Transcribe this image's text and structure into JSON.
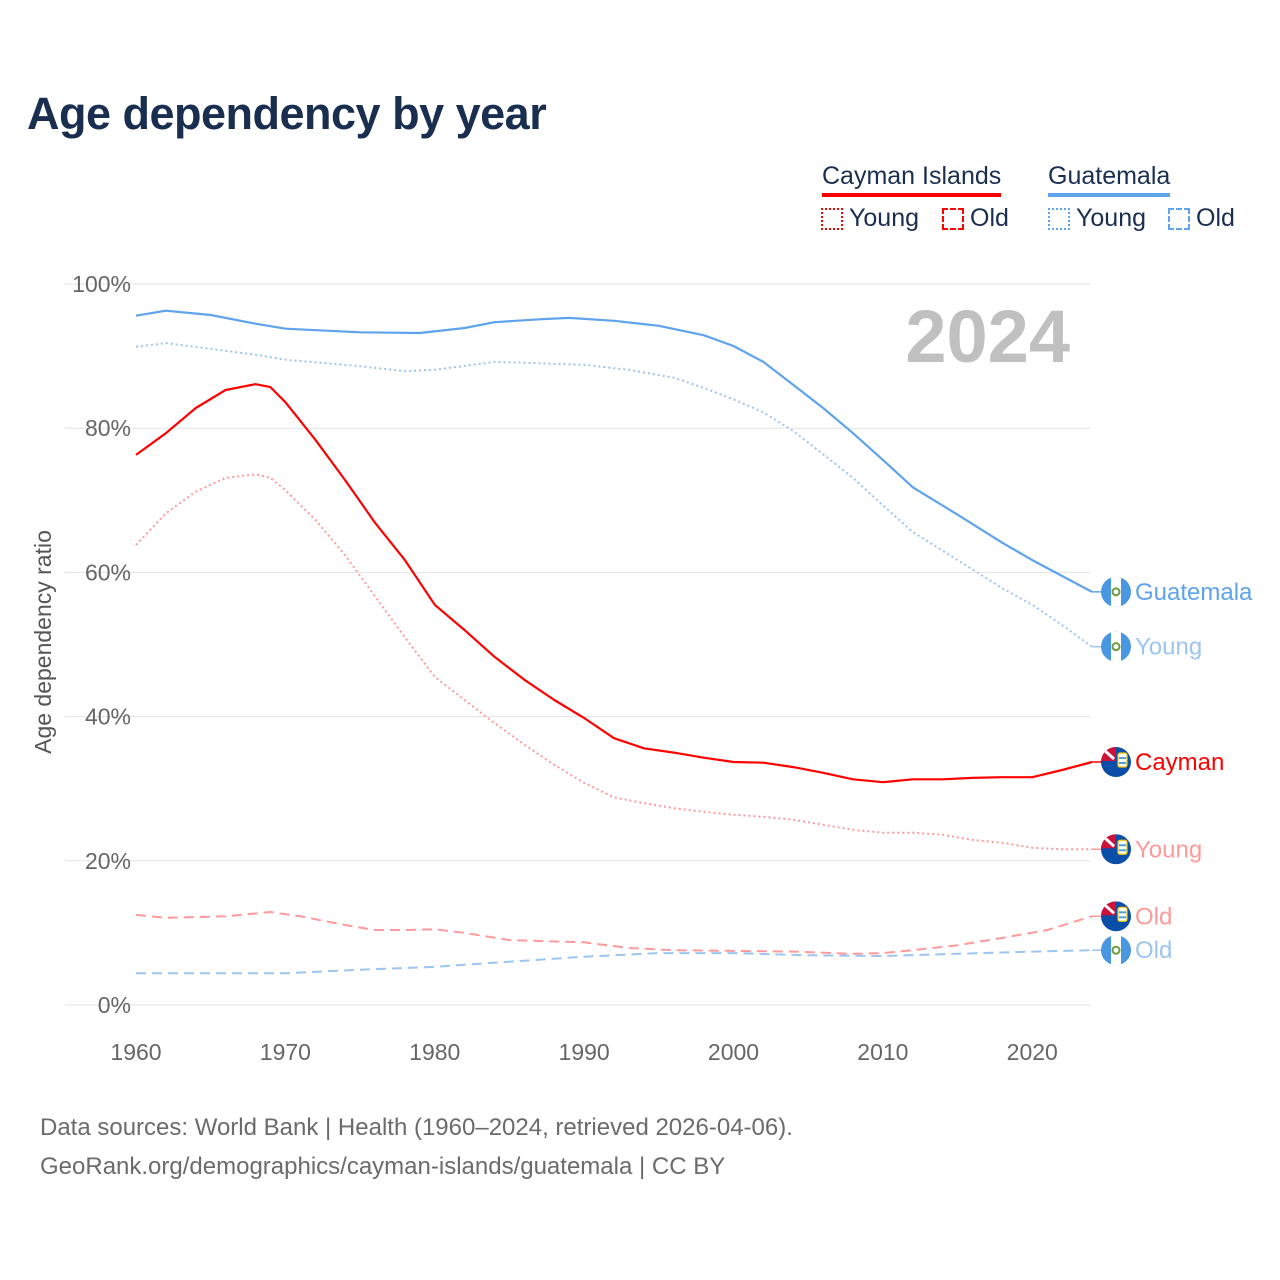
{
  "title": "Age dependency by year",
  "legend": {
    "groups": [
      {
        "name": "Cayman Islands",
        "color": "#ff0000",
        "young": "Young",
        "old": "Old"
      },
      {
        "name": "Guatemala",
        "color": "#5ea3eb",
        "young": "Young",
        "old": "Old"
      }
    ]
  },
  "year_watermark": "2024",
  "footer": {
    "line1": "Data sources: World Bank | Health (1960–2024, retrieved 2026-04-06).",
    "line2": "GeoRank.org/demographics/cayman-islands/guatemala | CC BY"
  },
  "chart_data": {
    "type": "line",
    "title": "Age dependency by year",
    "xlabel": "",
    "ylabel": "Age dependency ratio",
    "xlim": [
      1960,
      2024
    ],
    "ylim": [
      0,
      100
    ],
    "x_ticks": [
      "1960",
      "1970",
      "1980",
      "1990",
      "2000",
      "2010",
      "2020"
    ],
    "y_ticks": [
      "0%",
      "20%",
      "40%",
      "60%",
      "80%",
      "100%"
    ],
    "grid": true,
    "legend_position": "top-right",
    "series": [
      {
        "name": "Guatemala",
        "end_label": "Guatemala",
        "country": "guatemala",
        "color": "#5ea3eb",
        "dash": "solid",
        "points": [
          [
            1960,
            95.6
          ],
          [
            1962,
            96.3
          ],
          [
            1965,
            95.7
          ],
          [
            1968,
            94.5
          ],
          [
            1970,
            93.8
          ],
          [
            1975,
            93.3
          ],
          [
            1979,
            93.2
          ],
          [
            1982,
            93.9
          ],
          [
            1984,
            94.7
          ],
          [
            1987,
            95.1
          ],
          [
            1989,
            95.3
          ],
          [
            1992,
            94.9
          ],
          [
            1995,
            94.2
          ],
          [
            1998,
            92.9
          ],
          [
            2000,
            91.4
          ],
          [
            2002,
            89.2
          ],
          [
            2004,
            86.0
          ],
          [
            2006,
            82.8
          ],
          [
            2008,
            79.3
          ],
          [
            2010,
            75.6
          ],
          [
            2012,
            71.8
          ],
          [
            2015,
            68.0
          ],
          [
            2018,
            64.1
          ],
          [
            2020,
            61.7
          ],
          [
            2022,
            59.5
          ],
          [
            2024,
            57.3
          ]
        ]
      },
      {
        "name": "Guatemala Young",
        "end_label": "Young",
        "country": "guatemala",
        "color": "#9cc5f0",
        "dash": "dotted",
        "points": [
          [
            1960,
            91.3
          ],
          [
            1962,
            91.8
          ],
          [
            1965,
            91.0
          ],
          [
            1968,
            90.2
          ],
          [
            1970,
            89.5
          ],
          [
            1975,
            88.6
          ],
          [
            1978,
            87.9
          ],
          [
            1980,
            88.1
          ],
          [
            1984,
            89.2
          ],
          [
            1987,
            89.0
          ],
          [
            1990,
            88.8
          ],
          [
            1993,
            88.1
          ],
          [
            1996,
            87.0
          ],
          [
            1998,
            85.6
          ],
          [
            2000,
            84.0
          ],
          [
            2002,
            82.2
          ],
          [
            2004,
            79.6
          ],
          [
            2006,
            76.4
          ],
          [
            2008,
            73.1
          ],
          [
            2010,
            69.3
          ],
          [
            2012,
            65.6
          ],
          [
            2015,
            61.7
          ],
          [
            2018,
            57.8
          ],
          [
            2020,
            55.5
          ],
          [
            2022,
            52.7
          ],
          [
            2024,
            49.7
          ]
        ]
      },
      {
        "name": "Cayman Islands",
        "end_label": "Cayman",
        "country": "cayman",
        "color": "#ff0000",
        "dash": "solid",
        "points": [
          [
            1960,
            76.3
          ],
          [
            1962,
            79.3
          ],
          [
            1964,
            82.8
          ],
          [
            1966,
            85.3
          ],
          [
            1968,
            86.1
          ],
          [
            1969,
            85.7
          ],
          [
            1970,
            83.6
          ],
          [
            1972,
            78.4
          ],
          [
            1974,
            72.8
          ],
          [
            1976,
            66.9
          ],
          [
            1978,
            61.7
          ],
          [
            1980,
            55.5
          ],
          [
            1982,
            52.0
          ],
          [
            1984,
            48.3
          ],
          [
            1986,
            45.1
          ],
          [
            1988,
            42.3
          ],
          [
            1990,
            39.8
          ],
          [
            1992,
            37.0
          ],
          [
            1994,
            35.6
          ],
          [
            1996,
            35.0
          ],
          [
            1998,
            34.3
          ],
          [
            2000,
            33.7
          ],
          [
            2002,
            33.6
          ],
          [
            2004,
            33.0
          ],
          [
            2006,
            32.2
          ],
          [
            2008,
            31.3
          ],
          [
            2010,
            30.9
          ],
          [
            2012,
            31.3
          ],
          [
            2014,
            31.3
          ],
          [
            2016,
            31.5
          ],
          [
            2018,
            31.6
          ],
          [
            2020,
            31.6
          ],
          [
            2022,
            32.6
          ],
          [
            2024,
            33.7
          ]
        ]
      },
      {
        "name": "Cayman Islands Young",
        "end_label": "Young",
        "country": "cayman",
        "color": "#ff9a9a",
        "dash": "dotted",
        "points": [
          [
            1960,
            63.8
          ],
          [
            1962,
            68.2
          ],
          [
            1964,
            71.2
          ],
          [
            1966,
            73.1
          ],
          [
            1968,
            73.6
          ],
          [
            1969,
            73.1
          ],
          [
            1970,
            71.4
          ],
          [
            1972,
            67.3
          ],
          [
            1974,
            62.4
          ],
          [
            1976,
            56.7
          ],
          [
            1978,
            51.0
          ],
          [
            1980,
            45.5
          ],
          [
            1982,
            42.3
          ],
          [
            1984,
            39.1
          ],
          [
            1986,
            36.1
          ],
          [
            1988,
            33.3
          ],
          [
            1990,
            30.8
          ],
          [
            1992,
            28.8
          ],
          [
            1994,
            28.0
          ],
          [
            1996,
            27.3
          ],
          [
            1998,
            26.8
          ],
          [
            2000,
            26.4
          ],
          [
            2002,
            26.1
          ],
          [
            2004,
            25.7
          ],
          [
            2006,
            25.0
          ],
          [
            2008,
            24.3
          ],
          [
            2010,
            23.9
          ],
          [
            2012,
            23.9
          ],
          [
            2014,
            23.6
          ],
          [
            2016,
            22.9
          ],
          [
            2018,
            22.5
          ],
          [
            2020,
            21.8
          ],
          [
            2022,
            21.6
          ],
          [
            2024,
            21.6
          ]
        ]
      },
      {
        "name": "Cayman Islands Old",
        "end_label": "Old",
        "country": "cayman",
        "color": "#ff9a9a",
        "dash": "dashed",
        "points": [
          [
            1960,
            12.5
          ],
          [
            1962,
            12.1
          ],
          [
            1966,
            12.3
          ],
          [
            1969,
            12.9
          ],
          [
            1971,
            12.3
          ],
          [
            1974,
            11.1
          ],
          [
            1976,
            10.4
          ],
          [
            1978,
            10.4
          ],
          [
            1980,
            10.5
          ],
          [
            1982,
            10.0
          ],
          [
            1985,
            9.0
          ],
          [
            1990,
            8.7
          ],
          [
            1993,
            7.9
          ],
          [
            1996,
            7.6
          ],
          [
            2000,
            7.5
          ],
          [
            2004,
            7.4
          ],
          [
            2008,
            7.1
          ],
          [
            2010,
            7.2
          ],
          [
            2012,
            7.6
          ],
          [
            2015,
            8.3
          ],
          [
            2018,
            9.3
          ],
          [
            2021,
            10.4
          ],
          [
            2024,
            12.3
          ]
        ]
      },
      {
        "name": "Guatemala Old",
        "end_label": "Old",
        "country": "guatemala",
        "color": "#9cc5f0",
        "dash": "dashed",
        "points": [
          [
            1960,
            4.4
          ],
          [
            1970,
            4.4
          ],
          [
            1975,
            4.9
          ],
          [
            1980,
            5.3
          ],
          [
            1985,
            6.0
          ],
          [
            1990,
            6.7
          ],
          [
            1995,
            7.2
          ],
          [
            2000,
            7.2
          ],
          [
            2005,
            6.9
          ],
          [
            2010,
            6.8
          ],
          [
            2015,
            7.1
          ],
          [
            2020,
            7.4
          ],
          [
            2024,
            7.6
          ]
        ]
      }
    ]
  }
}
